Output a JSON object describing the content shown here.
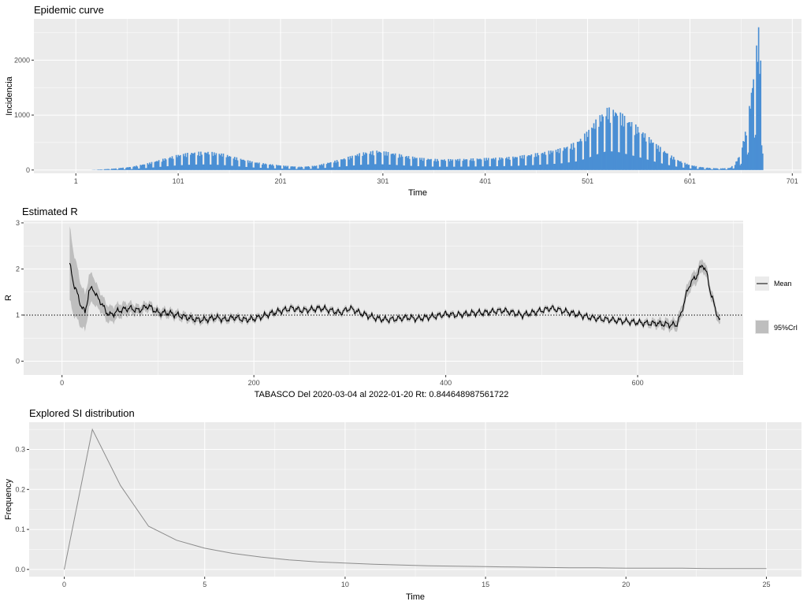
{
  "colors": {
    "panel": "#ebebeb",
    "grid_major": "#ffffff",
    "bar": "#4a8fd4",
    "line": "#000000",
    "ribbon": "#bebebe",
    "si_line": "#8c8c8c"
  },
  "chart_data": [
    {
      "type": "bar",
      "title": "Epidemic curve",
      "xlabel": "Time",
      "ylabel": "Incidencia",
      "xlim": [
        -40,
        710
      ],
      "ylim": [
        -60,
        2750
      ],
      "x_ticks": [
        1,
        101,
        201,
        301,
        401,
        501,
        601,
        701
      ],
      "x_tick_labels": [
        "1",
        "101",
        "201",
        "301",
        "401",
        "501",
        "601",
        "701"
      ],
      "y_ticks": [
        0,
        1000,
        2000
      ],
      "y_tick_labels": [
        "0",
        "1000",
        "2000"
      ],
      "wave_envelope": [
        [
          1,
          0
        ],
        [
          15,
          0
        ],
        [
          25,
          10
        ],
        [
          40,
          30
        ],
        [
          55,
          60
        ],
        [
          70,
          120
        ],
        [
          85,
          200
        ],
        [
          100,
          280
        ],
        [
          115,
          330
        ],
        [
          130,
          340
        ],
        [
          145,
          300
        ],
        [
          160,
          220
        ],
        [
          175,
          150
        ],
        [
          190,
          110
        ],
        [
          205,
          80
        ],
        [
          220,
          60
        ],
        [
          235,
          80
        ],
        [
          250,
          150
        ],
        [
          265,
          230
        ],
        [
          280,
          320
        ],
        [
          295,
          360
        ],
        [
          310,
          320
        ],
        [
          325,
          260
        ],
        [
          340,
          220
        ],
        [
          355,
          200
        ],
        [
          370,
          200
        ],
        [
          385,
          210
        ],
        [
          400,
          220
        ],
        [
          415,
          230
        ],
        [
          430,
          250
        ],
        [
          445,
          290
        ],
        [
          460,
          340
        ],
        [
          475,
          400
        ],
        [
          490,
          520
        ],
        [
          500,
          700
        ],
        [
          510,
          950
        ],
        [
          520,
          1150
        ],
        [
          530,
          1100
        ],
        [
          540,
          950
        ],
        [
          550,
          800
        ],
        [
          560,
          620
        ],
        [
          570,
          450
        ],
        [
          580,
          300
        ],
        [
          590,
          180
        ],
        [
          600,
          100
        ],
        [
          610,
          60
        ],
        [
          620,
          40
        ],
        [
          630,
          30
        ],
        [
          640,
          40
        ],
        [
          645,
          120
        ],
        [
          650,
          300
        ],
        [
          655,
          700
        ],
        [
          660,
          1300
        ],
        [
          663,
          1800
        ],
        [
          666,
          2300
        ],
        [
          668,
          2600
        ],
        [
          670,
          2000
        ],
        [
          672,
          1000
        ],
        [
          673,
          0
        ]
      ]
    },
    {
      "type": "line",
      "title": "Estimated R",
      "xlabel": "TABASCO  Del 2020-03-04 al 2022-01-20 Rt: 0.844648987561722",
      "ylabel": "R",
      "xlim": [
        -40,
        710
      ],
      "ylim": [
        -0.3,
        3.05
      ],
      "x_ticks": [
        0,
        200,
        400,
        600
      ],
      "x_tick_labels": [
        "0",
        "200",
        "400",
        "600"
      ],
      "y_ticks": [
        0,
        1,
        2,
        3
      ],
      "y_tick_labels": [
        "0",
        "1",
        "2",
        "3"
      ],
      "reference_line": 1,
      "legend": {
        "position": "right",
        "entries": [
          "Mean",
          "95%CrI"
        ]
      },
      "series_mean": [
        [
          8,
          2.1
        ],
        [
          12,
          1.7
        ],
        [
          16,
          1.45
        ],
        [
          20,
          1.2
        ],
        [
          24,
          1.05
        ],
        [
          28,
          1.5
        ],
        [
          32,
          1.6
        ],
        [
          36,
          1.4
        ],
        [
          40,
          1.3
        ],
        [
          45,
          1.1
        ],
        [
          50,
          1.0
        ],
        [
          60,
          1.1
        ],
        [
          70,
          1.15
        ],
        [
          80,
          1.1
        ],
        [
          90,
          1.2
        ],
        [
          100,
          1.05
        ],
        [
          110,
          1.05
        ],
        [
          120,
          1.0
        ],
        [
          130,
          0.95
        ],
        [
          140,
          0.9
        ],
        [
          150,
          0.9
        ],
        [
          160,
          0.95
        ],
        [
          170,
          0.9
        ],
        [
          180,
          0.95
        ],
        [
          190,
          0.9
        ],
        [
          200,
          0.92
        ],
        [
          210,
          0.98
        ],
        [
          220,
          1.05
        ],
        [
          230,
          1.1
        ],
        [
          240,
          1.15
        ],
        [
          250,
          1.1
        ],
        [
          260,
          1.12
        ],
        [
          270,
          1.15
        ],
        [
          280,
          1.1
        ],
        [
          290,
          1.05
        ],
        [
          300,
          1.15
        ],
        [
          310,
          1.05
        ],
        [
          320,
          0.98
        ],
        [
          330,
          0.92
        ],
        [
          340,
          0.9
        ],
        [
          350,
          0.92
        ],
        [
          360,
          0.95
        ],
        [
          370,
          0.92
        ],
        [
          380,
          0.95
        ],
        [
          390,
          0.98
        ],
        [
          400,
          1.02
        ],
        [
          410,
          1.0
        ],
        [
          420,
          1.02
        ],
        [
          430,
          1.05
        ],
        [
          440,
          1.05
        ],
        [
          450,
          1.08
        ],
        [
          460,
          1.1
        ],
        [
          470,
          1.05
        ],
        [
          480,
          1.0
        ],
        [
          490,
          1.05
        ],
        [
          500,
          1.1
        ],
        [
          510,
          1.15
        ],
        [
          520,
          1.1
        ],
        [
          530,
          1.05
        ],
        [
          540,
          1.0
        ],
        [
          550,
          0.95
        ],
        [
          560,
          0.92
        ],
        [
          570,
          0.9
        ],
        [
          580,
          0.88
        ],
        [
          590,
          0.86
        ],
        [
          600,
          0.84
        ],
        [
          610,
          0.82
        ],
        [
          620,
          0.82
        ],
        [
          630,
          0.8
        ],
        [
          640,
          0.78
        ],
        [
          645,
          1.0
        ],
        [
          650,
          1.4
        ],
        [
          655,
          1.7
        ],
        [
          660,
          1.8
        ],
        [
          665,
          2.0
        ],
        [
          668,
          2.1
        ],
        [
          672,
          1.9
        ],
        [
          676,
          1.5
        ],
        [
          680,
          1.2
        ],
        [
          684,
          0.95
        ],
        [
          686,
          0.85
        ]
      ],
      "series_ci_halfwidth": [
        [
          8,
          0.8
        ],
        [
          20,
          0.45
        ],
        [
          40,
          0.2
        ],
        [
          80,
          0.1
        ],
        [
          200,
          0.06
        ],
        [
          400,
          0.05
        ],
        [
          600,
          0.05
        ],
        [
          640,
          0.12
        ],
        [
          660,
          0.15
        ],
        [
          686,
          0.1
        ]
      ]
    },
    {
      "type": "line",
      "title": "Explored SI distribution",
      "xlabel": "Time",
      "ylabel": "Frequency",
      "xlim": [
        -1.25,
        26.25
      ],
      "ylim": [
        -0.018,
        0.368
      ],
      "x_ticks": [
        0,
        5,
        10,
        15,
        20,
        25
      ],
      "x_tick_labels": [
        "0",
        "5",
        "10",
        "15",
        "20",
        "25"
      ],
      "y_ticks": [
        0.0,
        0.1,
        0.2,
        0.3
      ],
      "y_tick_labels": [
        "0.0",
        "0.1",
        "0.2",
        "0.3"
      ],
      "x": [
        0,
        1,
        2,
        3,
        4,
        5,
        6,
        7,
        8,
        9,
        10,
        11,
        12,
        13,
        14,
        15,
        16,
        17,
        18,
        19,
        20,
        21,
        22,
        23,
        24,
        25
      ],
      "y": [
        0.0,
        0.35,
        0.21,
        0.108,
        0.073,
        0.053,
        0.04,
        0.031,
        0.024,
        0.019,
        0.016,
        0.013,
        0.011,
        0.009,
        0.008,
        0.007,
        0.006,
        0.005,
        0.004,
        0.004,
        0.003,
        0.003,
        0.003,
        0.002,
        0.002,
        0.002
      ]
    }
  ]
}
